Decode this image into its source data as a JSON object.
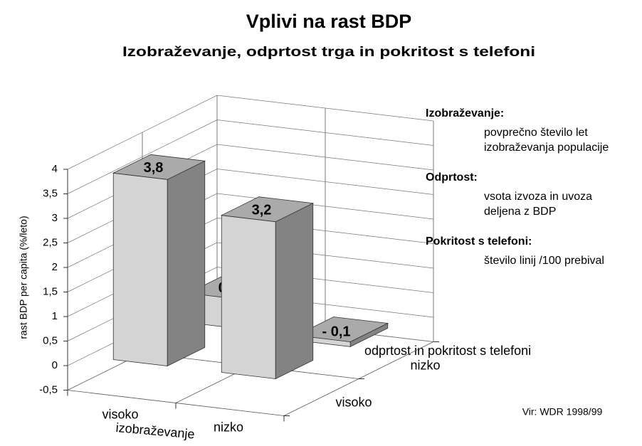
{
  "chart_data": {
    "type": "bar3d",
    "title": "Vplivi na rast BDP",
    "subtitle": "Izobraževanje, odprtost trga in pokritost s telefoni",
    "y_label": "rast BDP per capita (%/leto)",
    "x_label": "izobraževanje",
    "depth_label": "odprtost in pokritost s telefoni",
    "categories": [
      "visoko",
      "nizko"
    ],
    "series": [
      {
        "name": "visoko",
        "color": "#d4d4d4",
        "values": [
          3.8,
          3.2
        ],
        "value_labels": [
          "3,8",
          "3,2"
        ]
      },
      {
        "name": "nizko",
        "color": "#d4d4d4",
        "values": [
          0.6,
          -0.1
        ],
        "value_labels": [
          "0,6",
          "- 0,1"
        ]
      }
    ],
    "ylim": [
      -0.5,
      4
    ],
    "yticks": [
      {
        "value": -0.5,
        "label": "-0,5"
      },
      0,
      {
        "value": 0.5,
        "label": "0,5"
      },
      1,
      {
        "value": 1.5,
        "label": "1,5"
      },
      2,
      {
        "value": 2.5,
        "label": "2,5"
      },
      3,
      {
        "value": 3.5,
        "label": "3,5"
      },
      4
    ],
    "grid": true,
    "notes": [
      {
        "heading": "Izobraževanje:",
        "lines": [
          "povprečno število let",
          "izobraževanja populacije"
        ]
      },
      {
        "heading": "Odprtost:",
        "lines": [
          "vsota izvoza in uvoza",
          "deljena z BDP"
        ]
      },
      {
        "heading": "Pokritost s telefoni:",
        "lines": [
          "število linij /100 prebival"
        ]
      }
    ],
    "source": "Vir: WDR 1998/99"
  }
}
